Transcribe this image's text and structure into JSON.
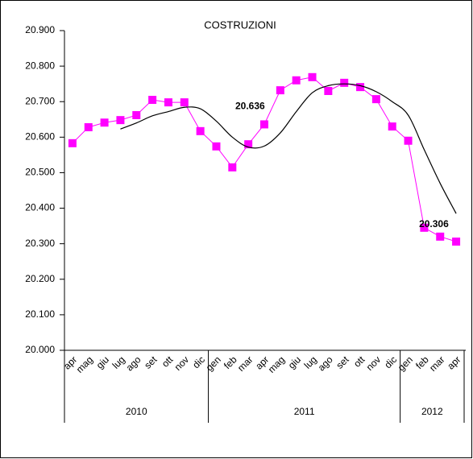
{
  "chart_data": {
    "type": "line",
    "title": "COSTRUZIONI",
    "categories": [
      "apr",
      "mag",
      "giu",
      "lug",
      "ago",
      "set",
      "ott",
      "nov",
      "dic",
      "gen",
      "feb",
      "mar",
      "apr",
      "mag",
      "giu",
      "lug",
      "ago",
      "set",
      "ott",
      "nov",
      "dic",
      "gen",
      "feb",
      "mar",
      "apr"
    ],
    "groups": [
      {
        "label": "2010",
        "count": 9
      },
      {
        "label": "2011",
        "count": 12
      },
      {
        "label": "2012",
        "count": 4
      }
    ],
    "series": [
      {
        "color": "#ff00ff",
        "marker": "square",
        "values": [
          20.583,
          20.628,
          20.641,
          20.648,
          20.662,
          20.705,
          20.698,
          20.698,
          20.617,
          20.574,
          20.515,
          20.58,
          20.636,
          20.732,
          20.76,
          20.769,
          20.73,
          20.753,
          20.741,
          20.707,
          20.63,
          20.59,
          20.345,
          20.32,
          20.306
        ],
        "value_labels": [
          null,
          null,
          null,
          null,
          null,
          null,
          null,
          null,
          null,
          null,
          null,
          null,
          "20.636",
          null,
          null,
          null,
          null,
          null,
          null,
          null,
          null,
          null,
          null,
          null,
          "20.306"
        ]
      },
      {
        "color": "#000000",
        "marker": "none",
        "values": [
          null,
          null,
          null,
          20.623,
          20.64,
          20.66,
          20.672,
          20.684,
          20.68,
          20.645,
          20.6,
          20.572,
          20.575,
          20.612,
          20.672,
          20.725,
          20.745,
          20.75,
          20.745,
          20.728,
          20.7,
          20.662,
          20.565,
          20.47,
          20.385
        ]
      }
    ],
    "ylim": [
      20.0,
      20.9
    ],
    "yticks": [
      {
        "value": 20.0,
        "label": "20.000"
      },
      {
        "value": 20.1,
        "label": "20.100"
      },
      {
        "value": 20.2,
        "label": "20.200"
      },
      {
        "value": 20.3,
        "label": "20.300"
      },
      {
        "value": 20.4,
        "label": "20.400"
      },
      {
        "value": 20.5,
        "label": "20.500"
      },
      {
        "value": 20.6,
        "label": "20.600"
      },
      {
        "value": 20.7,
        "label": "20.700"
      },
      {
        "value": 20.8,
        "label": "20.800"
      },
      {
        "value": 20.9,
        "label": "20.900"
      }
    ]
  }
}
